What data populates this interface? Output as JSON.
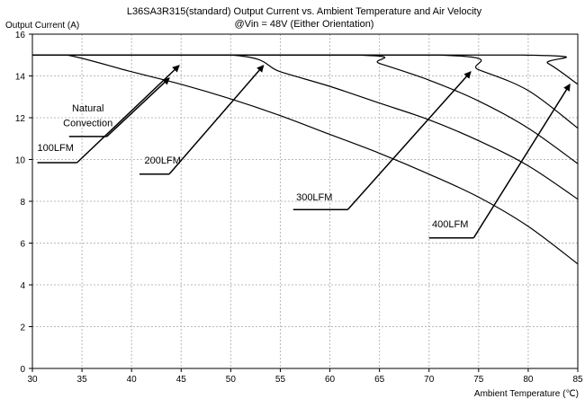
{
  "chart_data": {
    "type": "line",
    "title_line1": "L36SA3R315(standard)  Output Current vs. Ambient Temperature and Air Velocity",
    "title_line2": "@Vin = 48V (Either Orientation)",
    "xlabel": "Ambient Temperature (℃)",
    "ylabel": "Output Current (A)",
    "xlim": [
      30,
      85
    ],
    "ylim": [
      0,
      16
    ],
    "x_ticks": [
      30,
      35,
      40,
      45,
      50,
      55,
      60,
      65,
      70,
      75,
      80,
      85
    ],
    "y_ticks": [
      0,
      2,
      4,
      6,
      8,
      10,
      12,
      14,
      16
    ],
    "grid": true,
    "series": [
      {
        "name": "Natural Convection",
        "x": [
          30,
          33.5,
          40,
          45,
          50,
          55,
          60,
          65,
          70,
          75,
          80,
          85
        ],
        "y": [
          15,
          15,
          14.2,
          13.6,
          12.9,
          12.1,
          11.2,
          10.3,
          9.3,
          8.2,
          6.8,
          5.0
        ]
      },
      {
        "name": "100LFM",
        "x": [
          30,
          50,
          55,
          60,
          65,
          70,
          75,
          80,
          85
        ],
        "y": [
          15,
          15,
          14.2,
          13.5,
          12.7,
          11.9,
          10.9,
          9.7,
          8.1
        ]
      },
      {
        "name": "200LFM",
        "x": [
          30,
          62.5,
          65,
          70,
          75,
          80,
          85
        ],
        "y": [
          15,
          15,
          14.6,
          13.8,
          12.8,
          11.5,
          9.8
        ]
      },
      {
        "name": "300LFM",
        "x": [
          30,
          71,
          75,
          80,
          85
        ],
        "y": [
          15,
          15,
          14.3,
          13.3,
          11.5
        ]
      },
      {
        "name": "400LFM",
        "x": [
          30,
          79.5,
          82,
          85
        ],
        "y": [
          15,
          15,
          14.6,
          13.6
        ]
      }
    ],
    "annotations": [
      {
        "lines": [
          "Natural",
          "Convection"
        ],
        "text_x": 35.6,
        "text_y": [
          12.3,
          11.6
        ],
        "elbow": [
          [
            33.7,
            11.1
          ],
          [
            37.5,
            11.1
          ]
        ],
        "tip": [
          43.8,
          13.9
        ]
      },
      {
        "lines": [
          "100LFM"
        ],
        "text_x": 30.5,
        "text_y": [
          10.4
        ],
        "elbow": [
          [
            30.5,
            9.85
          ],
          [
            34.5,
            9.85
          ]
        ],
        "tip": [
          44.8,
          14.5
        ]
      },
      {
        "lines": [
          "200LFM"
        ],
        "text_x": 41.3,
        "text_y": [
          9.8
        ],
        "elbow": [
          [
            40.8,
            9.3
          ],
          [
            43.8,
            9.3
          ]
        ],
        "tip": [
          53.3,
          14.5
        ]
      },
      {
        "lines": [
          "300LFM"
        ],
        "text_x": 56.6,
        "text_y": [
          8.05
        ],
        "elbow": [
          [
            56.3,
            7.6
          ],
          [
            61.8,
            7.6
          ]
        ],
        "tip": [
          74.2,
          14.2
        ]
      },
      {
        "lines": [
          "400LFM"
        ],
        "text_x": 70.3,
        "text_y": [
          6.75
        ],
        "elbow": [
          [
            70.0,
            6.25
          ],
          [
            74.5,
            6.25
          ]
        ],
        "tip": [
          84.2,
          13.6
        ]
      }
    ]
  }
}
